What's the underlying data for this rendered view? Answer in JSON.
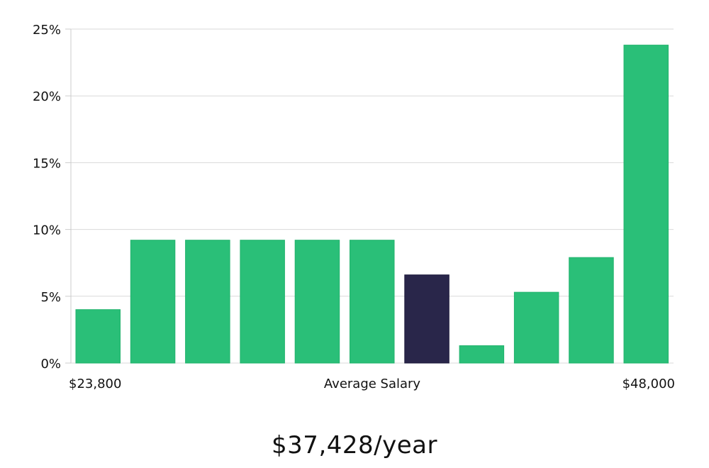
{
  "chart_data": {
    "type": "bar",
    "categories": [
      "1",
      "2",
      "3",
      "4",
      "5",
      "6",
      "7",
      "8",
      "9",
      "10",
      "11"
    ],
    "values": [
      4.0,
      9.2,
      9.2,
      9.2,
      9.2,
      9.2,
      6.6,
      1.3,
      5.3,
      7.9,
      23.8
    ],
    "highlight_index": 6,
    "ylim": [
      0,
      25
    ],
    "yticks": [
      0,
      5,
      10,
      15,
      20,
      25
    ],
    "ytick_labels": [
      "0%",
      "5%",
      "10%",
      "15%",
      "20%",
      "25%"
    ],
    "x_left_label": "$23,800",
    "xlabel": "Average Salary",
    "x_right_label": "$48,000",
    "grid": true,
    "colors": {
      "bar": "#2abf78",
      "bar_edge": "#22b36d",
      "highlight": "#29264a",
      "grid": "#d9d9d9",
      "axis": "#cccccc"
    }
  },
  "summary": {
    "salary": "$37,428/year"
  }
}
